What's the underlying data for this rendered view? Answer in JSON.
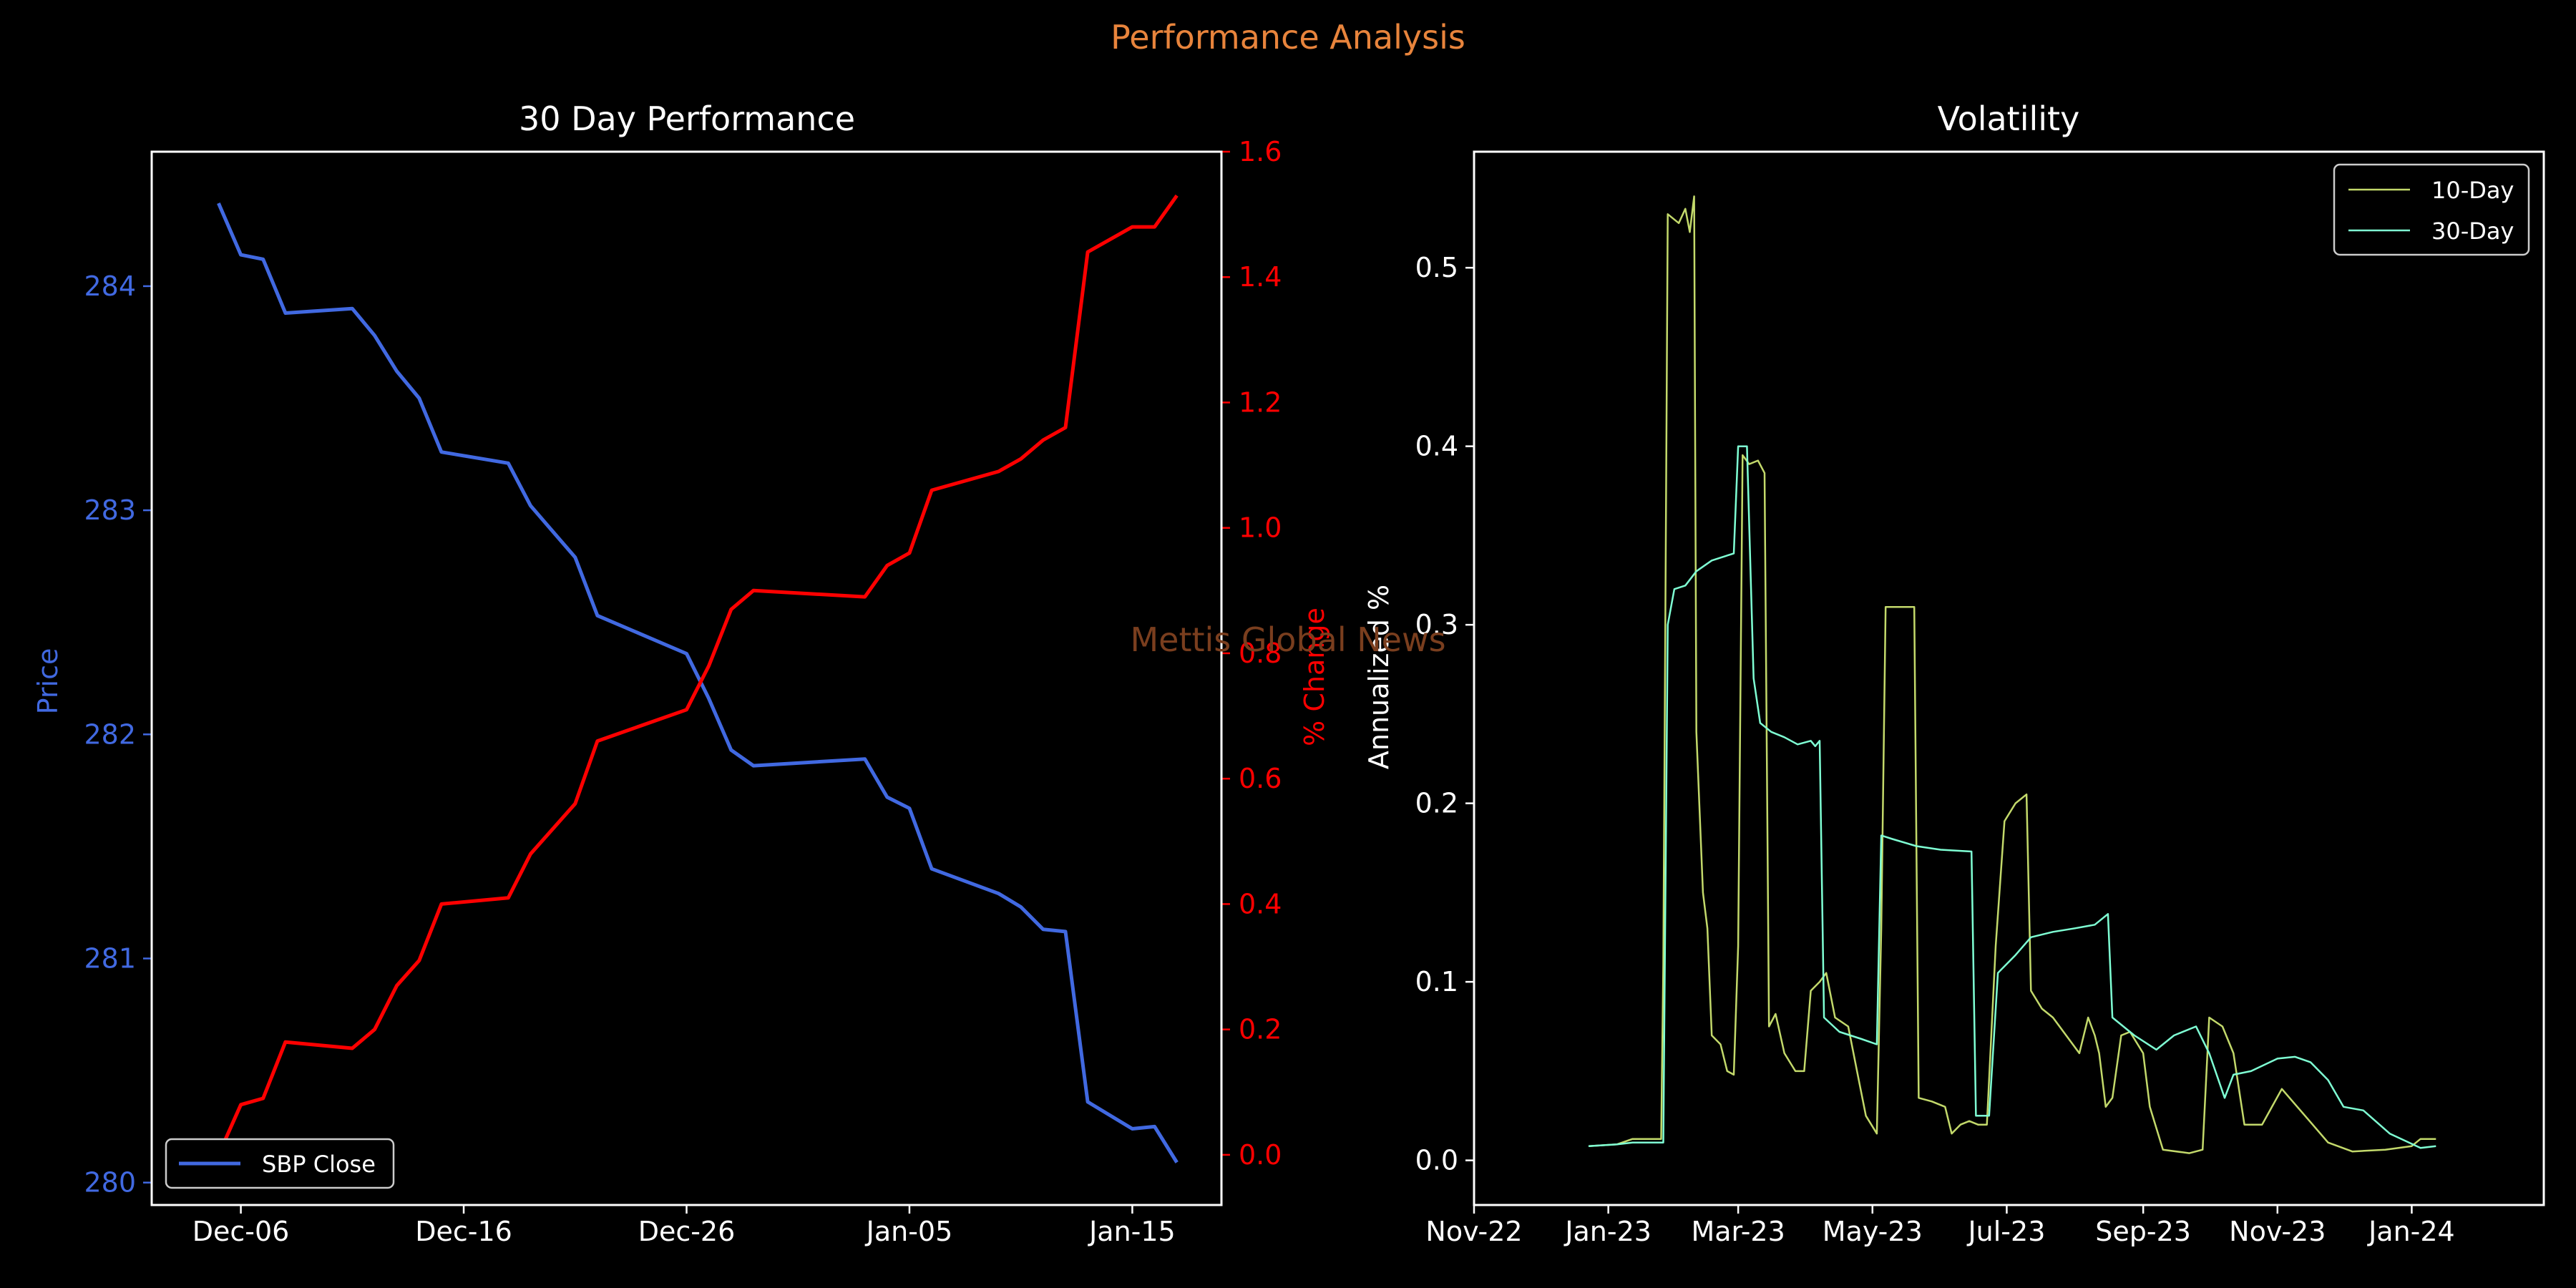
{
  "figure": {
    "suptitle": "Performance Analysis",
    "watermark": "Mettis Global News",
    "colors": {
      "background": "#000000",
      "foreground": "#ffffff",
      "suptitle": "#E8843C",
      "price": "#4169E1",
      "pct_change": "#FF0000",
      "vol10": "#C3D96B",
      "vol30": "#7FFFD4",
      "watermark": "#7A3E1E"
    }
  },
  "chart_data": [
    {
      "type": "line",
      "title": "30 Day Performance",
      "ylabel": "Price",
      "y2label": "% Change",
      "ylim": [
        279.9,
        284.6
      ],
      "y2lim": [
        -0.08,
        1.6
      ],
      "yticks": [
        280,
        281,
        282,
        283,
        284
      ],
      "y2ticks": [
        0.0,
        0.2,
        0.4,
        0.6,
        0.8,
        1.0,
        1.2,
        1.4,
        1.6
      ],
      "y2ticklabels": [
        "0.0",
        "0.2",
        "0.4",
        "0.6",
        "0.8",
        "1.0",
        "1.2",
        "1.4",
        "1.6"
      ],
      "xlim": [
        "2024-12-02",
        "2025-01-19"
      ],
      "xticks": [
        "2024-12-06",
        "2024-12-16",
        "2024-12-26",
        "2025-01-05",
        "2025-01-15"
      ],
      "xticklabels": [
        "Dec-06",
        "Dec-16",
        "Dec-26",
        "Jan-05",
        "Jan-15"
      ],
      "legend": {
        "position": "lower-left",
        "entries": [
          "SBP Close"
        ]
      },
      "x": [
        "2024-12-05",
        "2024-12-06",
        "2024-12-07",
        "2024-12-08",
        "2024-12-11",
        "2024-12-12",
        "2024-12-13",
        "2024-12-14",
        "2024-12-15",
        "2024-12-18",
        "2024-12-19",
        "2024-12-21",
        "2024-12-22",
        "2024-12-26",
        "2024-12-27",
        "2024-12-28",
        "2024-12-29",
        "2025-01-03",
        "2025-01-04",
        "2025-01-05",
        "2025-01-06",
        "2025-01-09",
        "2025-01-10",
        "2025-01-11",
        "2025-01-12",
        "2025-01-13",
        "2025-01-15",
        "2025-01-16",
        "2025-01-17"
      ],
      "series": [
        {
          "name": "SBP Close",
          "axis": "left",
          "values": [
            284.37,
            284.14,
            284.12,
            283.88,
            283.9,
            283.78,
            283.62,
            283.5,
            283.26,
            283.21,
            283.02,
            282.79,
            282.53,
            282.36,
            282.16,
            281.93,
            281.86,
            281.89,
            281.72,
            281.67,
            281.4,
            281.29,
            281.23,
            281.13,
            281.12,
            280.36,
            280.24,
            280.25,
            280.09
          ]
        },
        {
          "name": "% Change",
          "axis": "right",
          "values": [
            0.0,
            0.08,
            0.09,
            0.18,
            0.17,
            0.2,
            0.27,
            0.31,
            0.4,
            0.41,
            0.48,
            0.56,
            0.66,
            0.71,
            0.78,
            0.87,
            0.9,
            0.89,
            0.94,
            0.96,
            1.06,
            1.09,
            1.11,
            1.14,
            1.16,
            1.44,
            1.48,
            1.48,
            1.53
          ]
        }
      ]
    },
    {
      "type": "line",
      "title": "Volatility",
      "ylabel": "Annualized %",
      "ylim": [
        -0.025,
        0.565
      ],
      "yticks": [
        0.0,
        0.1,
        0.2,
        0.3,
        0.4,
        0.5
      ],
      "yticklabels": [
        "0.0",
        "0.1",
        "0.2",
        "0.3",
        "0.4",
        "0.5"
      ],
      "xlim": [
        "2022-11-01",
        "2024-03-01"
      ],
      "xticks": [
        "2022-11-01",
        "2023-01-01",
        "2023-03-01",
        "2023-05-01",
        "2023-07-01",
        "2023-09-01",
        "2023-11-01",
        "2024-01-01"
      ],
      "xticklabels": [
        "Nov-22",
        "Jan-23",
        "Mar-23",
        "May-23",
        "Jul-23",
        "Sep-23",
        "Nov-23",
        "Jan-24"
      ],
      "legend": {
        "position": "upper-right",
        "entries": [
          "10-Day",
          "30-Day"
        ]
      },
      "series": [
        {
          "name": "10-Day",
          "points": [
            [
              "2022-12-23",
              0.008
            ],
            [
              "2023-01-05",
              0.009
            ],
            [
              "2023-01-12",
              0.012
            ],
            [
              "2023-01-25",
              0.012
            ],
            [
              "2023-01-26",
              0.11
            ],
            [
              "2023-01-28",
              0.53
            ],
            [
              "2023-02-02",
              0.525
            ],
            [
              "2023-02-05",
              0.533
            ],
            [
              "2023-02-07",
              0.52
            ],
            [
              "2023-02-09",
              0.54
            ],
            [
              "2023-02-10",
              0.24
            ],
            [
              "2023-02-13",
              0.15
            ],
            [
              "2023-02-15",
              0.13
            ],
            [
              "2023-02-17",
              0.07
            ],
            [
              "2023-02-21",
              0.065
            ],
            [
              "2023-02-24",
              0.05
            ],
            [
              "2023-02-27",
              0.048
            ],
            [
              "2023-03-01",
              0.12
            ],
            [
              "2023-03-03",
              0.395
            ],
            [
              "2023-03-06",
              0.39
            ],
            [
              "2023-03-10",
              0.392
            ],
            [
              "2023-03-13",
              0.385
            ],
            [
              "2023-03-15",
              0.075
            ],
            [
              "2023-03-18",
              0.082
            ],
            [
              "2023-03-22",
              0.06
            ],
            [
              "2023-03-27",
              0.05
            ],
            [
              "2023-03-31",
              0.05
            ],
            [
              "2023-04-03",
              0.095
            ],
            [
              "2023-04-07",
              0.1
            ],
            [
              "2023-04-10",
              0.105
            ],
            [
              "2023-04-14",
              0.08
            ],
            [
              "2023-04-20",
              0.075
            ],
            [
              "2023-04-24",
              0.05
            ],
            [
              "2023-04-28",
              0.025
            ],
            [
              "2023-05-03",
              0.015
            ],
            [
              "2023-05-05",
              0.13
            ],
            [
              "2023-05-07",
              0.31
            ],
            [
              "2023-05-16",
              0.31
            ],
            [
              "2023-05-20",
              0.31
            ],
            [
              "2023-05-22",
              0.035
            ],
            [
              "2023-05-28",
              0.033
            ],
            [
              "2023-06-03",
              0.03
            ],
            [
              "2023-06-06",
              0.015
            ],
            [
              "2023-06-10",
              0.02
            ],
            [
              "2023-06-14",
              0.022
            ],
            [
              "2023-06-18",
              0.02
            ],
            [
              "2023-06-22",
              0.02
            ],
            [
              "2023-06-26",
              0.12
            ],
            [
              "2023-06-30",
              0.19
            ],
            [
              "2023-07-05",
              0.2
            ],
            [
              "2023-07-10",
              0.205
            ],
            [
              "2023-07-12",
              0.095
            ],
            [
              "2023-07-17",
              0.085
            ],
            [
              "2023-07-22",
              0.08
            ],
            [
              "2023-07-28",
              0.07
            ],
            [
              "2023-08-03",
              0.06
            ],
            [
              "2023-08-07",
              0.08
            ],
            [
              "2023-08-10",
              0.07
            ],
            [
              "2023-08-12",
              0.06
            ],
            [
              "2023-08-15",
              0.03
            ],
            [
              "2023-08-18",
              0.035
            ],
            [
              "2023-08-22",
              0.07
            ],
            [
              "2023-08-26",
              0.072
            ],
            [
              "2023-09-01",
              0.06
            ],
            [
              "2023-09-04",
              0.03
            ],
            [
              "2023-09-10",
              0.006
            ],
            [
              "2023-09-22",
              0.004
            ],
            [
              "2023-09-28",
              0.006
            ],
            [
              "2023-10-01",
              0.08
            ],
            [
              "2023-10-07",
              0.075
            ],
            [
              "2023-10-12",
              0.06
            ],
            [
              "2023-10-17",
              0.02
            ],
            [
              "2023-10-25",
              0.02
            ],
            [
              "2023-11-03",
              0.04
            ],
            [
              "2023-11-10",
              0.03
            ],
            [
              "2023-11-17",
              0.02
            ],
            [
              "2023-11-24",
              0.01
            ],
            [
              "2023-12-05",
              0.005
            ],
            [
              "2023-12-20",
              0.006
            ],
            [
              "2024-01-01",
              0.008
            ],
            [
              "2024-01-05",
              0.012
            ],
            [
              "2024-01-12",
              0.012
            ]
          ]
        },
        {
          "name": "30-Day",
          "points": [
            [
              "2022-12-23",
              0.008
            ],
            [
              "2023-01-05",
              0.009
            ],
            [
              "2023-01-12",
              0.01
            ],
            [
              "2023-01-26",
              0.01
            ],
            [
              "2023-01-28",
              0.3
            ],
            [
              "2023-01-31",
              0.32
            ],
            [
              "2023-02-05",
              0.322
            ],
            [
              "2023-02-10",
              0.33
            ],
            [
              "2023-02-17",
              0.336
            ],
            [
              "2023-02-27",
              0.34
            ],
            [
              "2023-03-01",
              0.4
            ],
            [
              "2023-03-05",
              0.4
            ],
            [
              "2023-03-08",
              0.27
            ],
            [
              "2023-03-11",
              0.245
            ],
            [
              "2023-03-16",
              0.24
            ],
            [
              "2023-03-22",
              0.237
            ],
            [
              "2023-03-28",
              0.233
            ],
            [
              "2023-04-03",
              0.235
            ],
            [
              "2023-04-05",
              0.232
            ],
            [
              "2023-04-07",
              0.235
            ],
            [
              "2023-04-09",
              0.08
            ],
            [
              "2023-04-16",
              0.072
            ],
            [
              "2023-04-26",
              0.068
            ],
            [
              "2023-05-03",
              0.065
            ],
            [
              "2023-05-05",
              0.182
            ],
            [
              "2023-05-10",
              0.18
            ],
            [
              "2023-05-21",
              0.176
            ],
            [
              "2023-06-01",
              0.174
            ],
            [
              "2023-06-15",
              0.173
            ],
            [
              "2023-06-17",
              0.025
            ],
            [
              "2023-06-23",
              0.025
            ],
            [
              "2023-06-27",
              0.105
            ],
            [
              "2023-07-05",
              0.115
            ],
            [
              "2023-07-12",
              0.125
            ],
            [
              "2023-07-22",
              0.128
            ],
            [
              "2023-08-01",
              0.13
            ],
            [
              "2023-08-10",
              0.132
            ],
            [
              "2023-08-16",
              0.138
            ],
            [
              "2023-08-18",
              0.08
            ],
            [
              "2023-08-28",
              0.07
            ],
            [
              "2023-09-07",
              0.062
            ],
            [
              "2023-09-15",
              0.07
            ],
            [
              "2023-09-25",
              0.075
            ],
            [
              "2023-10-01",
              0.06
            ],
            [
              "2023-10-08",
              0.035
            ],
            [
              "2023-10-12",
              0.048
            ],
            [
              "2023-10-20",
              0.05
            ],
            [
              "2023-11-01",
              0.057
            ],
            [
              "2023-11-09",
              0.058
            ],
            [
              "2023-11-16",
              0.055
            ],
            [
              "2023-11-24",
              0.045
            ],
            [
              "2023-12-01",
              0.03
            ],
            [
              "2023-12-10",
              0.028
            ],
            [
              "2023-12-22",
              0.015
            ],
            [
              "2024-01-05",
              0.007
            ],
            [
              "2024-01-12",
              0.008
            ]
          ]
        }
      ]
    }
  ]
}
